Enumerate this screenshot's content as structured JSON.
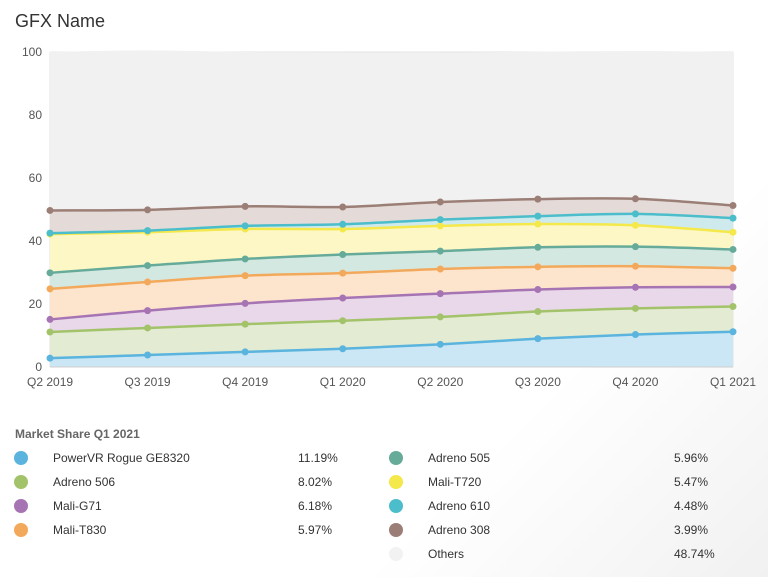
{
  "chart_data": {
    "type": "area",
    "title": "GFX Name",
    "stacked": true,
    "categories": [
      "Q2 2019",
      "Q3 2019",
      "Q4 2019",
      "Q1 2020",
      "Q2 2020",
      "Q3 2020",
      "Q4 2020",
      "Q1 2021"
    ],
    "ylim": [
      0,
      100
    ],
    "yticks": [
      0,
      20,
      40,
      60,
      80,
      100
    ],
    "grid": true,
    "series": [
      {
        "name": "PowerVR Rogue GE8320",
        "color": "#5ab4dd",
        "fill": "#cbe6f4",
        "values": [
          2.8,
          3.8,
          4.8,
          5.8,
          7.2,
          9.0,
          10.3,
          11.19
        ]
      },
      {
        "name": "Adreno 506",
        "color": "#a3c36a",
        "fill": "#e3ebd2",
        "values": [
          8.3,
          8.6,
          8.8,
          8.9,
          8.7,
          8.6,
          8.3,
          8.02
        ]
      },
      {
        "name": "Mali-G71",
        "color": "#a674b3",
        "fill": "#e9d7ea",
        "values": [
          4.0,
          5.5,
          6.6,
          7.2,
          7.4,
          7.0,
          6.7,
          6.18
        ]
      },
      {
        "name": "Mali-T830",
        "color": "#f3a95b",
        "fill": "#fde4cd",
        "values": [
          9.7,
          9.1,
          8.8,
          7.9,
          7.8,
          7.2,
          6.7,
          5.97
        ]
      },
      {
        "name": "Adreno 505",
        "color": "#66ab9a",
        "fill": "#d4e8e2",
        "values": [
          5.1,
          5.2,
          5.3,
          5.9,
          5.7,
          6.2,
          6.2,
          5.96
        ]
      },
      {
        "name": "Mali-T720",
        "color": "#f4e84b",
        "fill": "#fcf7c5",
        "values": [
          12.3,
          10.6,
          9.5,
          8.1,
          8.0,
          7.4,
          6.8,
          5.47
        ]
      },
      {
        "name": "Adreno 610",
        "color": "#4cbdca",
        "fill": "#cfeaed",
        "values": [
          0.3,
          0.5,
          1.0,
          1.5,
          2.0,
          2.5,
          3.6,
          4.48
        ]
      },
      {
        "name": "Adreno 308",
        "color": "#9b7f76",
        "fill": "#e4dad7",
        "values": [
          7.2,
          6.6,
          6.2,
          5.5,
          5.6,
          5.4,
          4.8,
          3.99
        ]
      },
      {
        "name": "Others",
        "color": "#f2f2f2",
        "fill": "#f1f1f1",
        "values": [
          50.3,
          50.6,
          49.0,
          49.1,
          47.4,
          46.8,
          46.9,
          48.74
        ]
      }
    ]
  },
  "legend": {
    "title": "Market Share Q1 2021",
    "items": [
      {
        "name": "PowerVR Rogue GE8320",
        "value": "11.19%",
        "color": "#5ab4dd"
      },
      {
        "name": "Adreno 506",
        "value": "8.02%",
        "color": "#a3c36a"
      },
      {
        "name": "Mali-G71",
        "value": "6.18%",
        "color": "#a674b3"
      },
      {
        "name": "Mali-T830",
        "value": "5.97%",
        "color": "#f3a95b"
      },
      {
        "name": "Adreno 505",
        "value": "5.96%",
        "color": "#66ab9a"
      },
      {
        "name": "Mali-T720",
        "value": "5.47%",
        "color": "#f4e84b"
      },
      {
        "name": "Adreno 610",
        "value": "4.48%",
        "color": "#4cbdca"
      },
      {
        "name": "Adreno 308",
        "value": "3.99%",
        "color": "#9b7f76"
      },
      {
        "name": "Others",
        "value": "48.74%",
        "color": "#f2f2f2"
      }
    ]
  }
}
